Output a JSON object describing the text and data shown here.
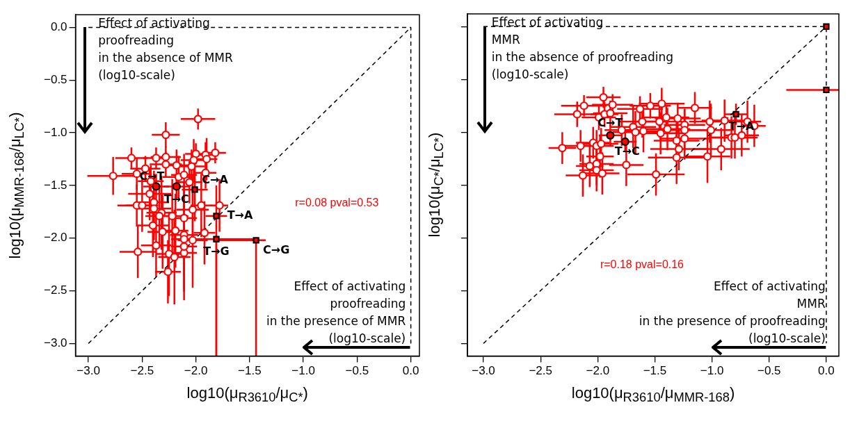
{
  "chart_data": [
    {
      "type": "scatter",
      "xlabel": "log10(μ$_{R3610}$/μ$_{C*}$)",
      "ylabel": "log10(μ$_{MMR-168}$/μ$_{LC*}$)",
      "xlim": [
        -3.12,
        0.08
      ],
      "ylim": [
        -3.12,
        0.12
      ],
      "xticks": [
        {
          "value": -3,
          "label": "−3.0"
        },
        {
          "value": -2.5,
          "label": "−2.5"
        },
        {
          "value": -2,
          "label": "−2.0"
        },
        {
          "value": -1.5,
          "label": "−1.5"
        },
        {
          "value": -1,
          "label": "−1.0"
        },
        {
          "value": -0.5,
          "label": "−0.5"
        },
        {
          "value": 0,
          "label": "0.0"
        }
      ],
      "yticks": [
        {
          "value": -3,
          "label": "−3.0"
        },
        {
          "value": -2.5,
          "label": "−2.5"
        },
        {
          "value": -2,
          "label": "−2.0"
        },
        {
          "value": -1.5,
          "label": "−1.5"
        },
        {
          "value": -1,
          "label": "−1.0"
        },
        {
          "value": -0.5,
          "label": "−0.5"
        },
        {
          "value": 0,
          "label": "0.0"
        }
      ],
      "grid": false,
      "legend": false,
      "annotations": [
        "Effect of activating\nproofreading\nin the absence of MMR\n(log10-scale)",
        "Effect of activating\nproofreading\nin the presence of MMR\n(log10-scale)",
        "r=0.08 pval=0.53",
        {
          "text": "C→T",
          "x": -2.37,
          "y": -1.51
        },
        {
          "text": "T→C",
          "x": -2.18,
          "y": -1.51
        },
        {
          "text": "C→A",
          "x": -2.01,
          "y": -1.54
        },
        {
          "text": "T→A",
          "x": -1.81,
          "y": -1.79
        },
        {
          "text": "T→G",
          "x": -1.81,
          "y": -2.01
        },
        {
          "text": "C→G",
          "x": -1.44,
          "y": -2.02
        }
      ],
      "series": [
        {
          "type": "scatter",
          "color": "#ff0000",
          "marker": "circle",
          "x": [
            -1.98,
            -2.28,
            -2.6,
            -2.37,
            -2.28,
            -2.0,
            -1.82,
            -1.91,
            -1.9,
            -2.02,
            -2.28,
            -2.18,
            -2.04,
            -2.47,
            -2.77,
            -2.55,
            -2.42,
            -2.16,
            -2.11,
            -1.91,
            -2.06,
            -2.43,
            -2.55,
            -2.5,
            -2.39,
            -2.39,
            -2.32,
            -2.34,
            -2.22,
            -2.11,
            -2.03,
            -1.95,
            -1.78,
            -2.4,
            -2.31,
            -2.19,
            -2.11,
            -2.11,
            -2.03,
            -1.92,
            -2.54,
            -2.37,
            -2.25,
            -2.2,
            -2.11,
            -2.11,
            -2.26
          ],
          "values": [
            -0.87,
            -1.02,
            -1.24,
            -1.24,
            -1.23,
            -1.2,
            -1.19,
            -1.21,
            -1.25,
            -1.26,
            -1.3,
            -1.31,
            -1.32,
            -1.34,
            -1.41,
            -1.39,
            -1.46,
            -1.42,
            -1.4,
            -1.38,
            -1.47,
            -1.58,
            -1.69,
            -1.69,
            -1.66,
            -1.72,
            -1.76,
            -1.79,
            -1.79,
            -1.81,
            -1.73,
            -1.69,
            -1.69,
            -1.88,
            -1.94,
            -1.93,
            -1.97,
            -2.01,
            -2.02,
            -1.95,
            -2.13,
            -2.07,
            -2.15,
            -2.18,
            -2.14,
            -2.08,
            -2.32
          ],
          "xerrors": [
            0.16,
            0.13,
            0.15,
            0.12,
            0.14,
            0.1,
            0.1,
            0.12,
            0.1,
            0.12,
            0.15,
            0.13,
            0.12,
            0.14,
            0.24,
            0.14,
            0.12,
            0.15,
            0.12,
            0.1,
            0.12,
            0.2,
            0.18,
            0.15,
            0.14,
            0.16,
            0.14,
            0.13,
            0.15,
            0.12,
            0.15,
            0.1,
            0.08,
            0.15,
            0.14,
            0.12,
            0.13,
            0.12,
            0.14,
            0.1,
            0.17,
            0.14,
            0.12,
            0.15,
            0.12,
            0.12,
            0.12
          ],
          "errors": [
            0.1,
            0.12,
            0.1,
            0.1,
            0.1,
            0.1,
            0.1,
            0.12,
            0.2,
            0.2,
            0.12,
            0.15,
            0.16,
            0.12,
            0.18,
            0.15,
            0.15,
            0.2,
            0.2,
            0.15,
            0.2,
            0.25,
            0.2,
            0.25,
            0.3,
            0.3,
            0.35,
            0.3,
            0.35,
            0.35,
            0.3,
            0.3,
            0.25,
            0.3,
            0.35,
            0.35,
            0.4,
            0.5,
            0.45,
            0.3,
            0.25,
            0.3,
            0.4,
            0.45,
            0.45,
            0.4,
            0.3
          ]
        },
        {
          "type": "scatter",
          "color": "#000000",
          "marker": "circle",
          "x": [
            -2.37,
            -2.18
          ],
          "values": [
            -1.51,
            -1.51
          ],
          "xerrors": [
            0.12,
            0.12
          ],
          "errors": [
            0.12,
            0.12
          ]
        },
        {
          "type": "scatter",
          "color": "#000000",
          "marker": "square",
          "x": [
            -2.01,
            -1.81,
            -1.81,
            -1.44
          ],
          "values": [
            -1.54,
            -1.79,
            -2.01,
            -2.02
          ],
          "xerrors": [
            0.12,
            0.1,
            [
              -2.0,
              -1.44
            ],
            [
              -1.8,
              -1.35
            ]
          ],
          "errors": [
            0.3,
            [
              -3.12,
              -1.5
            ],
            [
              -3.12,
              -2.01
            ],
            [
              -3.12,
              -2.02
            ]
          ]
        },
        {
          "type": "line",
          "color": "#000000",
          "line_style": "dashed",
          "marker": "none",
          "x": [
            -3,
            0
          ],
          "values": [
            -3,
            0
          ]
        },
        {
          "type": "line",
          "color": "#000000",
          "line_style": "dashed",
          "marker": "none",
          "x": [
            -3,
            0,
            0
          ],
          "values": [
            0,
            0,
            -3
          ]
        }
      ]
    },
    {
      "type": "scatter",
      "xlabel": "log10(μ$_{R3610}$/μ$_{MMR-168}$)",
      "ylabel": "log10(μ$_{C*}$/μ$_{LC*}$)",
      "xlim": [
        -3.14,
        0.11
      ],
      "ylim": [
        -3.12,
        0.12
      ],
      "tick_labels": "x",
      "xticks": [
        {
          "value": -3,
          "label": "−3.0"
        },
        {
          "value": -2.5,
          "label": "−2.5"
        },
        {
          "value": -2,
          "label": "−2.0"
        },
        {
          "value": -1.5,
          "label": "−1.5"
        },
        {
          "value": -1,
          "label": "−1.0"
        },
        {
          "value": -0.5,
          "label": "−0.5"
        },
        {
          "value": 0,
          "label": "0.0"
        }
      ],
      "yticks": [
        {
          "value": -3,
          "label": null
        },
        {
          "value": -2.5,
          "label": null
        },
        {
          "value": -2,
          "label": null
        },
        {
          "value": -1.5,
          "label": null
        },
        {
          "value": -1,
          "label": null
        },
        {
          "value": -0.5,
          "label": null
        },
        {
          "value": 0,
          "label": null
        }
      ],
      "grid": false,
      "legend": false,
      "annotations": [
        "Effect of activating\nMMR\nin the absence of proofreading\n(log10-scale)",
        "Effect of activating\nMMR\nin the presence of proofreading\n(log10-scale)",
        "r=0.18 pval=0.16",
        {
          "text": "C→T",
          "x": -1.89,
          "y": -1.03
        },
        {
          "text": "T→C",
          "x": -1.76,
          "y": -1.09
        },
        {
          "text": "T→A",
          "x": -0.79,
          "y": -0.83
        }
      ],
      "series": [
        {
          "type": "scatter",
          "color": "#ff0000",
          "marker": "circle",
          "x": [
            -1.95,
            -2.12,
            -1.87,
            -2.18,
            -1.99,
            -1.94,
            -1.89,
            -1.63,
            -1.54,
            -1.44,
            -1.15,
            -1.4,
            -1.3,
            -1.61,
            -1.46,
            -1.24,
            -1.69,
            -1.6,
            -1.67,
            -1.79,
            -1.39,
            -1.45,
            -1.24,
            -1.24,
            -1.31,
            -1.02,
            -1.01,
            -0.89,
            -0.69,
            -0.63,
            -0.83,
            -0.8,
            -0.74,
            -0.92,
            -1.04,
            -1.29,
            -1.31,
            -2.31,
            -2.15,
            -2.04,
            -2.01,
            -1.97,
            -1.98,
            -2.07,
            -2.01,
            -2.01,
            -2.13,
            -1.96,
            -1.75,
            -1.49
          ],
          "values": [
            -0.67,
            -0.75,
            -0.74,
            -0.83,
            -0.86,
            -0.83,
            -0.82,
            -0.78,
            -0.75,
            -0.73,
            -0.77,
            -0.86,
            -0.87,
            -0.9,
            -0.9,
            -0.93,
            -0.95,
            -0.99,
            -1.0,
            -0.98,
            -0.97,
            -1.01,
            -0.98,
            -1.06,
            -1.08,
            -0.9,
            -0.98,
            -0.89,
            -0.9,
            -0.94,
            -1.05,
            -1.05,
            -1.03,
            -1.16,
            -1.23,
            -1.16,
            -1.24,
            -1.15,
            -1.13,
            -1.1,
            -1.13,
            -1.11,
            -1.23,
            -1.32,
            -1.3,
            -1.36,
            -1.41,
            -1.39,
            -1.31,
            -1.4
          ],
          "xerrors": [
            0.15,
            0.2,
            0.18,
            0.2,
            0.15,
            0.12,
            0.15,
            0.2,
            0.18,
            0.2,
            0.15,
            0.2,
            0.2,
            0.2,
            0.2,
            0.18,
            0.2,
            0.2,
            0.2,
            0.15,
            0.2,
            0.22,
            0.2,
            0.22,
            0.2,
            0.18,
            0.2,
            0.2,
            0.12,
            0.1,
            0.2,
            0.2,
            0.15,
            0.25,
            0.2,
            0.25,
            0.25,
            0.12,
            0.15,
            0.15,
            0.15,
            0.15,
            0.12,
            0.12,
            0.15,
            0.15,
            0.15,
            0.15,
            0.15,
            0.25
          ],
          "errors": [
            0.1,
            0.1,
            0.1,
            0.12,
            0.12,
            0.12,
            0.12,
            0.12,
            0.12,
            0.15,
            0.15,
            0.12,
            0.15,
            0.15,
            0.15,
            0.15,
            0.2,
            0.2,
            0.2,
            0.15,
            0.2,
            0.2,
            0.2,
            0.2,
            0.2,
            0.2,
            0.25,
            0.2,
            0.2,
            0.2,
            0.2,
            0.2,
            0.2,
            0.2,
            0.25,
            0.2,
            0.25,
            0.15,
            0.15,
            0.15,
            0.15,
            0.15,
            0.2,
            0.2,
            0.2,
            0.2,
            0.2,
            0.2,
            0.2,
            0.2
          ]
        },
        {
          "type": "scatter",
          "color": "#000000",
          "marker": "circle",
          "x": [
            -1.89,
            -1.76
          ],
          "values": [
            -1.03,
            -1.09
          ],
          "xerrors": [
            0.1,
            0.1
          ],
          "errors": [
            0.1,
            0.1
          ]
        },
        {
          "type": "scatter",
          "color": "#000000",
          "marker": "square",
          "x": [
            -0.79,
            0,
            0
          ],
          "values": [
            -0.83,
            0,
            -0.6
          ],
          "xerrors": [
            0.1,
            null,
            [
              -0.35,
              0.11
            ]
          ],
          "errors": [
            0.1,
            null,
            null
          ]
        },
        {
          "type": "line",
          "color": "#000000",
          "line_style": "dashed",
          "marker": "none",
          "x": [
            -3,
            0
          ],
          "values": [
            -3,
            0
          ]
        },
        {
          "type": "line",
          "color": "#000000",
          "line_style": "dashed",
          "marker": "none",
          "x": [
            -3,
            0,
            0
          ],
          "values": [
            0,
            0,
            -3
          ]
        }
      ]
    }
  ]
}
